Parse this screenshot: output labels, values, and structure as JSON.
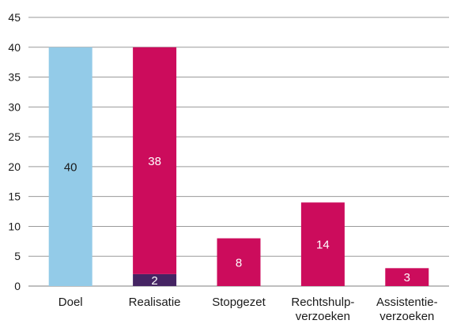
{
  "chart_data": {
    "type": "bar",
    "stacked": true,
    "categories": [
      [
        "Doel"
      ],
      [
        "Realisatie"
      ],
      [
        "Stopgezet"
      ],
      [
        "Rechtshulp-",
        "verzoeken"
      ],
      [
        "Assistentie-",
        "verzoeken"
      ]
    ],
    "bars": [
      {
        "segments": [
          {
            "value": 40,
            "label": "40",
            "color": "#93cbe8",
            "label_color": "#1a1a1a"
          }
        ]
      },
      {
        "segments": [
          {
            "value": 2,
            "label": "2",
            "color": "#452463",
            "label_color": "#ffffff"
          },
          {
            "value": 38,
            "label": "38",
            "color": "#cc0c5c",
            "label_color": "#ffffff"
          }
        ]
      },
      {
        "segments": [
          {
            "value": 8,
            "label": "8",
            "color": "#cc0c5c",
            "label_color": "#ffffff"
          }
        ]
      },
      {
        "segments": [
          {
            "value": 14,
            "label": "14",
            "color": "#cc0c5c",
            "label_color": "#ffffff"
          }
        ]
      },
      {
        "segments": [
          {
            "value": 3,
            "label": "3",
            "color": "#cc0c5c",
            "label_color": "#ffffff"
          }
        ]
      }
    ],
    "ylim": [
      0,
      45
    ],
    "yticks": [
      0,
      5,
      10,
      15,
      20,
      25,
      30,
      35,
      40,
      45
    ],
    "grid": true,
    "legend": "none",
    "title": "",
    "xlabel": "",
    "ylabel": ""
  }
}
